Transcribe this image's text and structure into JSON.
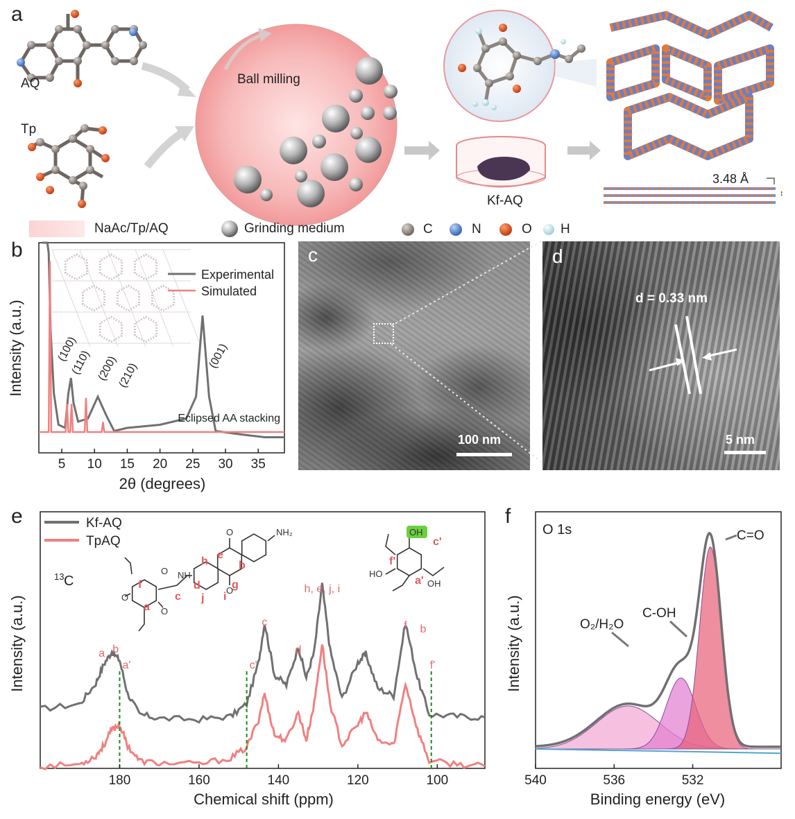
{
  "panel_a": {
    "label": "a",
    "aq_label": "AQ",
    "tp_label": "Tp",
    "ball_milling": "Ball milling",
    "product": "Kf-AQ",
    "spacing": "3.48 Å",
    "legend": {
      "mixture": "NaAc/Tp/AQ",
      "grinding": "Grinding medium",
      "atoms": [
        {
          "symbol": "C",
          "color": "#8d8580"
        },
        {
          "symbol": "N",
          "color": "#5b8fd6"
        },
        {
          "symbol": "O",
          "color": "#e0501e"
        },
        {
          "symbol": "H",
          "color": "#cfeaee"
        }
      ]
    }
  },
  "panel_c": {
    "label": "c",
    "scale": "100 nm"
  },
  "panel_d": {
    "label": "d",
    "spacing": "d = 0.33 nm",
    "scale": "5 nm"
  },
  "chart_data": [
    {
      "panel": "b",
      "type": "line",
      "xlabel": "2θ (degrees)",
      "ylabel": "Intensity (a.u.)",
      "xlim": [
        1.5,
        39
      ],
      "x_ticks": [
        5,
        10,
        15,
        20,
        25,
        30,
        35
      ],
      "legend_position": "top-right",
      "series": [
        {
          "name": "Experimental",
          "color": "#707070",
          "x": [
            2.0,
            2.4,
            2.8,
            3.0,
            3.3,
            3.8,
            4.5,
            5.5,
            6.0,
            6.4,
            6.8,
            7.5,
            9.0,
            10.5,
            11.8,
            13.0,
            15.0,
            20.0,
            24.0,
            25.5,
            26.5,
            27.5,
            28.5,
            32.0,
            36.0,
            39.0
          ],
          "y": [
            100,
            100,
            100,
            22,
            19.5,
            17.5,
            16.5,
            16.4,
            17.5,
            18,
            17.2,
            16.6,
            16.7,
            17.4,
            16.8,
            16.3,
            16.4,
            16.5,
            16.7,
            17.4,
            20,
            17.4,
            16.3,
            16.2,
            16.1,
            16.1
          ]
        },
        {
          "name": "Simulated",
          "color": "#f08080",
          "x": [
            1.5,
            3.0,
            3.2,
            3.4,
            5.6,
            5.8,
            6.0,
            6.3,
            6.5,
            6.7,
            8.5,
            8.7,
            8.9,
            11.1,
            11.3,
            11.5,
            39.0
          ],
          "y": [
            0,
            0,
            17,
            0,
            0,
            2.8,
            0,
            0,
            2.8,
            0,
            0,
            3.4,
            0,
            0,
            1,
            0,
            0
          ]
        }
      ],
      "annotations": [
        "(100)",
        "(110)",
        "(200)",
        "(210)",
        "(001)",
        "Eclipsed AA stacking"
      ]
    },
    {
      "panel": "e",
      "type": "line",
      "xlabel": "Chemical shift (ppm)",
      "ylabel": "Intensity (a.u.)",
      "xlim": [
        200,
        88
      ],
      "x_ticks": [
        180,
        160,
        140,
        120,
        100
      ],
      "legend_position": "top-left",
      "nucleus": "13C",
      "series": [
        {
          "name": "Kf-AQ",
          "color": "#707070",
          "x": [
            200,
            190,
            186,
            184,
            182,
            180,
            178,
            175,
            170,
            160,
            152,
            148,
            145,
            143.5,
            141,
            138,
            135,
            133,
            131,
            129,
            127,
            124,
            120,
            118,
            115,
            111,
            108,
            105,
            102,
            95,
            88
          ],
          "y": [
            0.25,
            0.3,
            0.5,
            0.68,
            0.8,
            0.72,
            0.4,
            0.2,
            0.16,
            0.15,
            0.18,
            0.3,
            0.7,
            1.08,
            0.58,
            0.48,
            0.85,
            0.55,
            0.8,
            1.45,
            0.82,
            0.35,
            0.7,
            0.78,
            0.45,
            0.38,
            1.08,
            0.55,
            0.2,
            0.18,
            0.17
          ]
        },
        {
          "name": "TpAQ",
          "color": "#f08080",
          "x": [
            200,
            190,
            186,
            184,
            182,
            180,
            178,
            175,
            170,
            160,
            152,
            148,
            145,
            143.5,
            141,
            138,
            135,
            133,
            131,
            129,
            127,
            124,
            120,
            118,
            115,
            111,
            108,
            105,
            102,
            95,
            88
          ],
          "y": [
            -0.3,
            -0.28,
            -0.2,
            -0.1,
            0.05,
            0.1,
            -0.1,
            -0.25,
            -0.27,
            -0.28,
            -0.22,
            -0.12,
            0.15,
            0.4,
            0.0,
            -0.05,
            0.22,
            -0.05,
            0.3,
            0.88,
            0.3,
            -0.1,
            0.1,
            0.22,
            -0.05,
            -0.1,
            0.5,
            0.05,
            -0.25,
            -0.28,
            -0.3
          ]
        }
      ],
      "markers": [
        {
          "x": 180,
          "label": "a'"
        },
        {
          "x": 148,
          "label": "c'"
        },
        {
          "x": 101.5,
          "label": "f'"
        }
      ],
      "peak_labels": [
        {
          "x": 184.5,
          "text": "a"
        },
        {
          "x": 181,
          "text": "b"
        },
        {
          "x": 143.5,
          "text": "c"
        },
        {
          "x": 135,
          "text": "d"
        },
        {
          "x": 129,
          "text": "h, e, j, i"
        },
        {
          "x": 108,
          "text": "f"
        },
        {
          "x": 106,
          "text": "b"
        }
      ],
      "structure_labels": [
        "NH",
        "NH₂",
        "OH",
        "HO",
        "f",
        "a",
        "c",
        "d",
        "j",
        "i",
        "g",
        "h",
        "e",
        "b",
        "f'",
        "c'",
        "a'"
      ]
    },
    {
      "panel": "f",
      "type": "area",
      "title": "O 1s",
      "xlabel": "Binding energy (eV)",
      "ylabel": "Intensity (a.u.)",
      "xlim": [
        540,
        527.5
      ],
      "x_ticks": [
        540,
        536,
        532
      ],
      "series": [
        {
          "name": "C=O",
          "center": 531.1,
          "amplitude": 0.94,
          "color": "#e8627a"
        },
        {
          "name": "C-OH",
          "center": 532.6,
          "amplitude": 0.33,
          "color": "#e27fd0"
        },
        {
          "name": "O2/H2O",
          "center": 535.3,
          "amplitude": 0.2,
          "color": "#f3a9d4"
        },
        {
          "name": "Envelope",
          "color": "#707070"
        }
      ],
      "annotations": [
        "C=O",
        "C-OH",
        "O2/H2O"
      ]
    }
  ]
}
